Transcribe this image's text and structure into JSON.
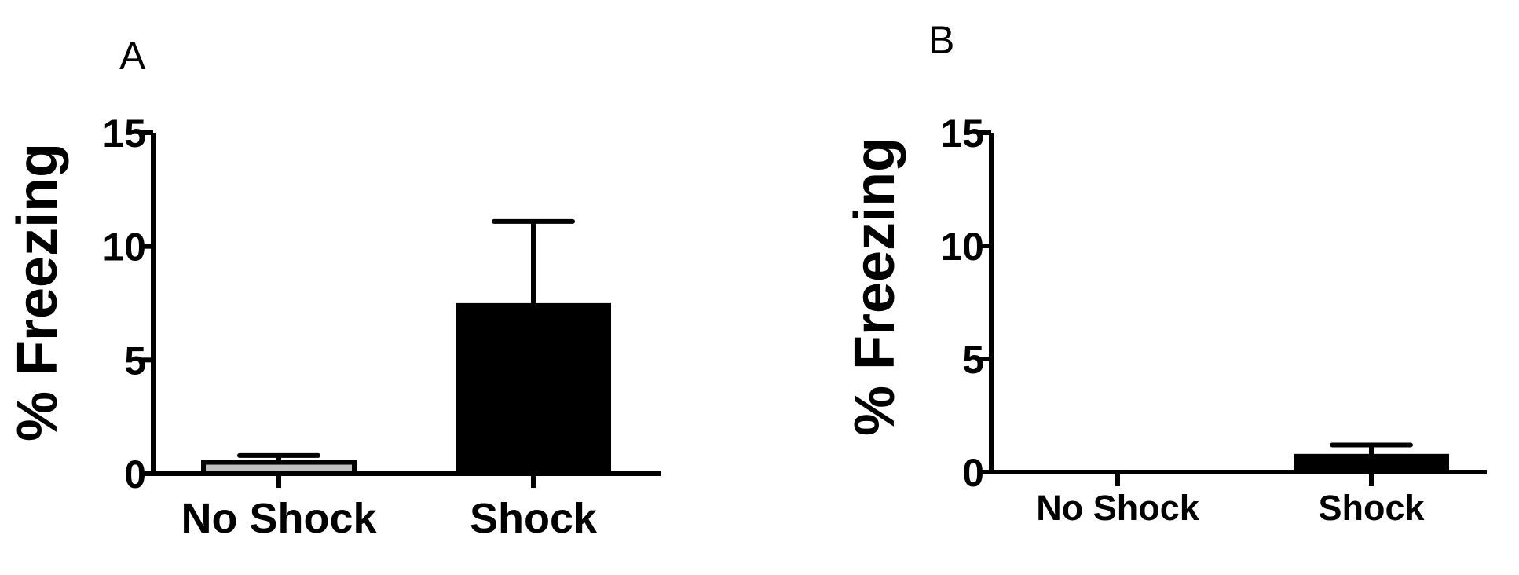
{
  "chart_data": [
    {
      "type": "bar",
      "panel_label": "A",
      "categories": [
        "No Shock",
        "Shock"
      ],
      "values": [
        0.5,
        7.4
      ],
      "errors": [
        0.3,
        3.7
      ],
      "colors": [
        "#c0c0c0",
        "#000000"
      ],
      "ylabel": "% Freezing",
      "ylim": [
        0,
        15
      ],
      "yticks": [
        0,
        5,
        10,
        15
      ],
      "title": "",
      "xlabel": "",
      "grid": false,
      "legend": "none"
    },
    {
      "type": "bar",
      "panel_label": "B",
      "categories": [
        "No Shock",
        "Shock"
      ],
      "values": [
        0.0,
        0.7
      ],
      "errors": [
        0.0,
        0.5
      ],
      "colors": [
        "#c0c0c0",
        "#000000"
      ],
      "ylabel": "% Freezing",
      "ylim": [
        0,
        15
      ],
      "yticks": [
        0,
        5,
        10,
        15
      ],
      "title": "",
      "xlabel": "",
      "grid": false,
      "legend": "none"
    }
  ]
}
